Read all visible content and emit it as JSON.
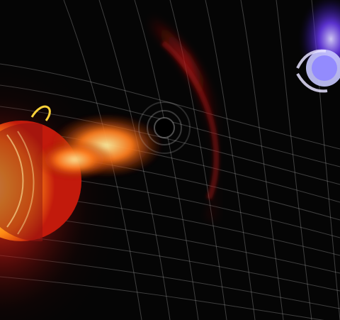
{
  "scene": {
    "subject": "space-weather-illustration",
    "elements": [
      "sun-cutaway-icon",
      "solar-flare-icon",
      "coronal-mass-ejection-icon",
      "magnetic-field-grid-icon",
      "magnetosphere-glow-icon",
      "earth-icon"
    ]
  },
  "colors": {
    "space": "#050505",
    "sun_core": "#ffd23a",
    "sun_mid": "#ff8a14",
    "sun_rim": "#c21a0c",
    "flare": "#ff7a1a",
    "cme_arc": "#b3140f",
    "grid": "#d9d9d9",
    "magnetosphere": "#6f3cff",
    "earth": "#c8c8ff"
  }
}
